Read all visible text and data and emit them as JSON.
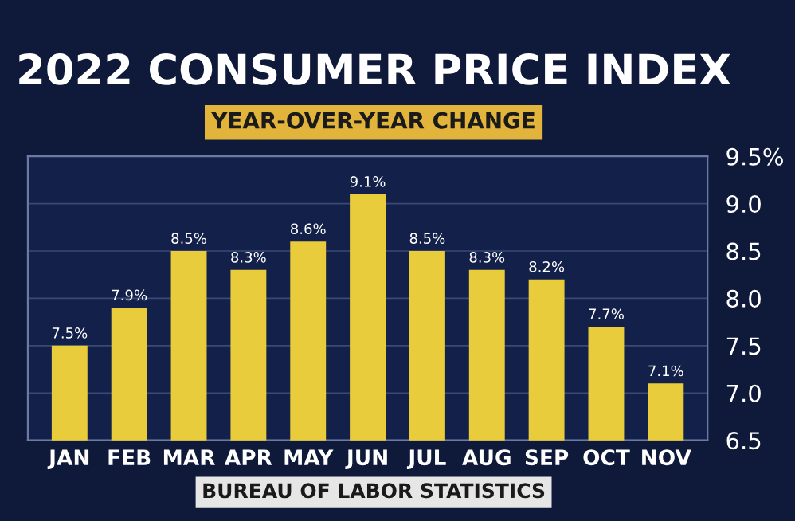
{
  "chart_data": {
    "type": "bar",
    "title": "2022 CONSUMER PRICE INDEX",
    "subtitle": "YEAR-OVER-YEAR CHANGE",
    "annotations": [
      "BUREAU OF LABOR STATISTICS"
    ],
    "categories": [
      "JAN",
      "FEB",
      "MAR",
      "APR",
      "MAY",
      "JUN",
      "JUL",
      "AUG",
      "SEP",
      "OCT",
      "NOV"
    ],
    "values": [
      7.5,
      7.9,
      8.5,
      8.3,
      8.6,
      9.1,
      8.5,
      8.3,
      8.2,
      7.7,
      7.1
    ],
    "value_labels": [
      "7.5%",
      "7.9%",
      "8.5%",
      "8.3%",
      "8.6%",
      "9.1%",
      "8.5%",
      "8.3%",
      "8.2%",
      "7.7%",
      "7.1%"
    ],
    "color": "#e8cc3c",
    "ylim": [
      6.5,
      9.5
    ],
    "yticks": [
      {
        "value": 6.5,
        "label": "6.5"
      },
      {
        "value": 7.0,
        "label": "7.0"
      },
      {
        "value": 7.5,
        "label": "7.5"
      },
      {
        "value": 8.0,
        "label": "8.0"
      },
      {
        "value": 8.5,
        "label": "8.5"
      },
      {
        "value": 9.0,
        "label": "9.0"
      },
      {
        "value": 9.5,
        "label": "9.5%"
      }
    ],
    "grid": "y"
  }
}
